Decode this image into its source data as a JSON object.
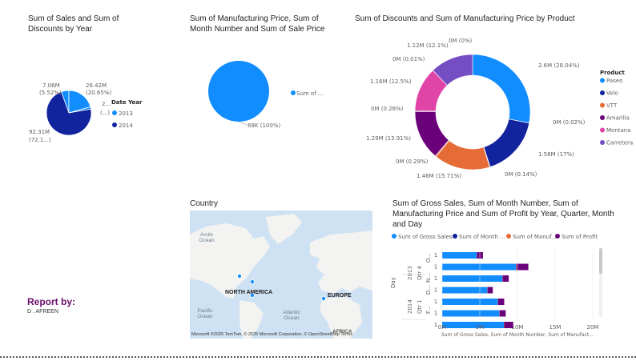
{
  "colors": {
    "c2013": "#118dff",
    "c2014": "#12239e",
    "paseo": "#118dff",
    "velo": "#12239e",
    "vtt": "#e66c37",
    "amarilla": "#6b007b",
    "montana": "#e044a7",
    "carretera": "#744ec2",
    "gross": "#118dff",
    "month": "#12239e",
    "manuf": "#e66c37",
    "profit": "#6b007b"
  },
  "visual1": {
    "title": "Sum of Sales and Sum of Discounts by Year",
    "legend_title": "Date Year",
    "legend": [
      "2013",
      "2014"
    ],
    "labels": {
      "top_left_a": "7.06M",
      "top_left_b": "(5.52%)",
      "top_right_a": "26.42M",
      "top_right_b": "(20.65%)",
      "small_a": "2...",
      "small_b": "(...)",
      "bottom_a": "92.31M",
      "bottom_b": "(72.1...)"
    },
    "chart_data": {
      "type": "pie",
      "slices": [
        {
          "label": "7.06M (5.52%)",
          "value": 7.06
        },
        {
          "label": "26.42M (20.65%)",
          "value": 26.42
        },
        {
          "label": "2... (...)",
          "value": 2.1
        },
        {
          "label": "92.31M (72.1...)",
          "value": 92.31
        }
      ]
    }
  },
  "visual2": {
    "title": "Sum of Manufacturing Price, Sum of Month Number and Sum of Sale Price",
    "legend": "Sum of ...",
    "slice_label": "68K (100%)",
    "chart_data": {
      "type": "pie",
      "slices": [
        {
          "label": "Sum of ...",
          "value": 68000
        }
      ]
    }
  },
  "visual3": {
    "title": "Sum of Discounts and Sum of Manufacturing Price by Product",
    "legend_title": "Product",
    "chart_data": {
      "type": "pie",
      "hole": "donut",
      "slices": [
        {
          "label": "2.6M (28.04%)",
          "value": 28.04,
          "color": "paseo"
        },
        {
          "label": "0M (0.02%)",
          "value": 0.02,
          "color": "paseo"
        },
        {
          "label": "1.58M (17%)",
          "value": 17.0,
          "color": "velo"
        },
        {
          "label": "0M (0.14%)",
          "value": 0.14,
          "color": "velo"
        },
        {
          "label": "1.46M (15.71%)",
          "value": 15.71,
          "color": "vtt"
        },
        {
          "label": "0M (0.29%)",
          "value": 0.29,
          "color": "vtt"
        },
        {
          "label": "1.29M (13.91%)",
          "value": 13.91,
          "color": "amarilla"
        },
        {
          "label": "0M (0.26%)",
          "value": 0.26,
          "color": "amarilla"
        },
        {
          "label": "1.16M (12.5%)",
          "value": 12.5,
          "color": "montana"
        },
        {
          "label": "0M (0.01%)",
          "value": 0.01,
          "color": "montana"
        },
        {
          "label": "1.12M (12.1%)",
          "value": 12.1,
          "color": "carretera"
        },
        {
          "label": "0M (0%)",
          "value": 0.0,
          "color": "carretera"
        }
      ],
      "legend": [
        "Paseo",
        "Velo",
        "VTT",
        "Amarilla",
        "Montana",
        "Carretera"
      ]
    }
  },
  "country": {
    "title": "Country",
    "labels": {
      "arctic": "Arctic Ocean",
      "north_america": "NORTH AMERICA",
      "europe": "EUROPE",
      "pacific": "Pacific Ocean",
      "atlantic": "Atlantic Ocean",
      "africa": "AFRICA"
    },
    "attribution": "Microsoft  ©2025 TomTom, © 2025 Microsoft Corporation, © OpenStreetMap Terms"
  },
  "report": {
    "heading": "Report by:",
    "name": "D . AFREEN"
  },
  "visual5": {
    "title": "Sum of Gross Sales, Sum of Month Number, Sum of Manufacturing Price and Sum of Profit by Year, Quarter, Month and Day",
    "legend": [
      "Sum of Gross Sales",
      "Sum of Month ...",
      "Sum of Manuf...",
      "Sum of Profit"
    ],
    "y_axis_title": "Day",
    "x_axis_title": "Sum of Gross Sales, Sum of Month Number, Sum of Manufact...",
    "year_labels": [
      "2013",
      "2014"
    ],
    "qtr_labels": [
      "Qtr 4",
      "Qtr 1"
    ],
    "month_labels": [
      "O...",
      "N...",
      "D...",
      "F..."
    ],
    "chart_data": {
      "type": "bar",
      "orientation": "horizontal",
      "stacked": true,
      "categories": [
        "1",
        "1",
        "1",
        "1",
        "1",
        "1",
        "1"
      ],
      "series": [
        {
          "name": "Sum of Gross Sales",
          "values": [
            4.6,
            9.8,
            8.0,
            6.0,
            7.4,
            7.6,
            8.2
          ]
        },
        {
          "name": "Sum of Month ...",
          "values": [
            0,
            0,
            0,
            0,
            0,
            0,
            0
          ]
        },
        {
          "name": "Sum of Manuf...",
          "values": [
            0.02,
            0.05,
            0.04,
            0.03,
            0.04,
            0.04,
            0.04
          ]
        },
        {
          "name": "Sum of Profit",
          "values": [
            0.8,
            1.6,
            0.8,
            0.7,
            0.8,
            0.8,
            1.2
          ]
        }
      ],
      "xticks": [
        "0M",
        "5M",
        "10M",
        "15M",
        "20M"
      ],
      "xlim": [
        0,
        20
      ]
    }
  }
}
